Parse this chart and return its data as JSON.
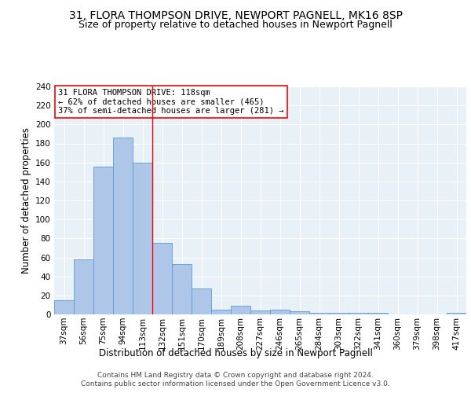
{
  "title1": "31, FLORA THOMPSON DRIVE, NEWPORT PAGNELL, MK16 8SP",
  "title2": "Size of property relative to detached houses in Newport Pagnell",
  "xlabel": "Distribution of detached houses by size in Newport Pagnell",
  "ylabel": "Number of detached properties",
  "bar_labels": [
    "37sqm",
    "56sqm",
    "75sqm",
    "94sqm",
    "113sqm",
    "132sqm",
    "151sqm",
    "170sqm",
    "189sqm",
    "208sqm",
    "227sqm",
    "246sqm",
    "265sqm",
    "284sqm",
    "303sqm",
    "322sqm",
    "341sqm",
    "360sqm",
    "379sqm",
    "398sqm",
    "417sqm"
  ],
  "bar_values": [
    15,
    58,
    156,
    186,
    160,
    75,
    53,
    27,
    5,
    9,
    4,
    5,
    3,
    2,
    2,
    2,
    2,
    0,
    0,
    0,
    2
  ],
  "bar_color": "#aec6e8",
  "bar_edge_color": "#5b9bd5",
  "background_color": "#e8f0f8",
  "grid_color": "#ffffff",
  "vline_x": 4.5,
  "vline_color": "red",
  "annotation_line1": "31 FLORA THOMPSON DRIVE: 118sqm",
  "annotation_line2": "← 62% of detached houses are smaller (465)",
  "annotation_line3": "37% of semi-detached houses are larger (281) →",
  "annotation_box_color": "white",
  "annotation_box_edge_color": "red",
  "ylim": [
    0,
    240
  ],
  "yticks": [
    0,
    20,
    40,
    60,
    80,
    100,
    120,
    140,
    160,
    180,
    200,
    220,
    240
  ],
  "footer_line1": "Contains HM Land Registry data © Crown copyright and database right 2024.",
  "footer_line2": "Contains public sector information licensed under the Open Government Licence v3.0.",
  "title1_fontsize": 10,
  "title2_fontsize": 9,
  "xlabel_fontsize": 8.5,
  "ylabel_fontsize": 8.5,
  "tick_fontsize": 7.5,
  "annotation_fontsize": 7.5,
  "footer_fontsize": 6.5
}
